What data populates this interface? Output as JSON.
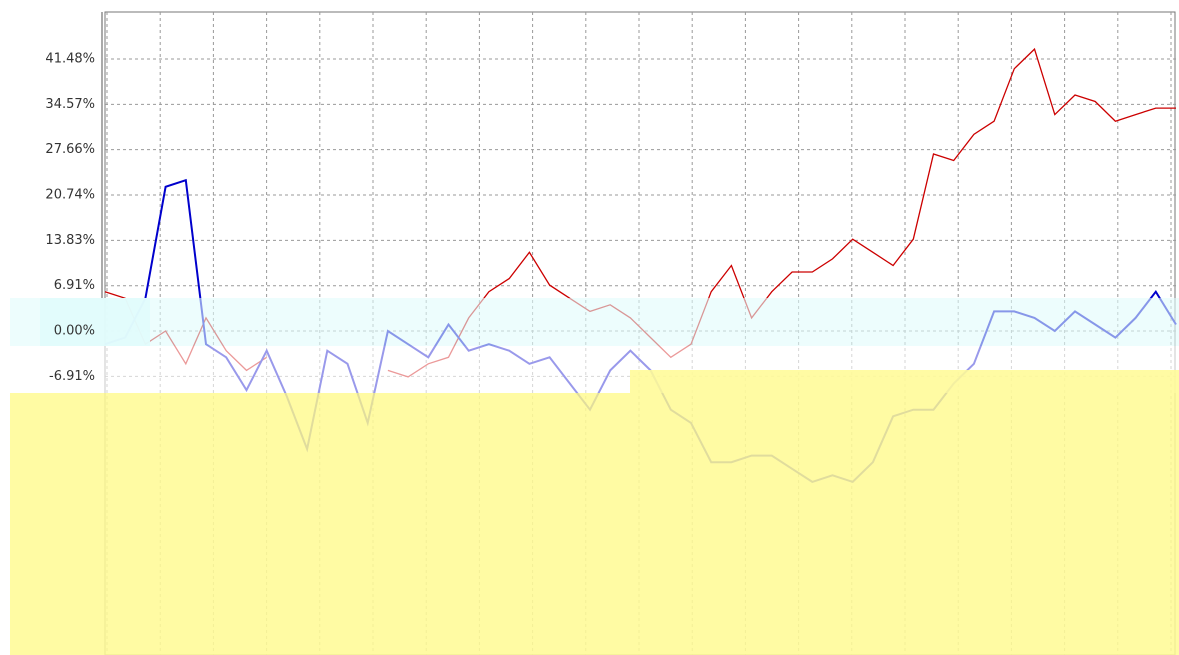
{
  "chart_data": {
    "type": "line",
    "series": [
      {
        "color": "#cc0000",
        "values": [
          6,
          5,
          -2,
          0,
          -5,
          2,
          -3,
          -6,
          -4,
          null,
          null,
          null,
          null,
          null,
          -6,
          -7,
          -5,
          -4,
          2,
          6,
          8,
          12,
          7,
          5,
          3,
          4,
          2,
          -1,
          -4,
          -2,
          6,
          10,
          2,
          6,
          9,
          9,
          11,
          14,
          12,
          10,
          14,
          27,
          26,
          30,
          32,
          40,
          43,
          33,
          36,
          35,
          32,
          33,
          34,
          34
        ]
      },
      {
        "color": "#0000cc",
        "values": [
          -2,
          -1,
          5,
          22,
          23,
          -2,
          -4,
          -9,
          -3,
          -10,
          -18,
          -3,
          -5,
          -14,
          0,
          -2,
          -4,
          1,
          -3,
          -2,
          -3,
          -5,
          -4,
          -8,
          -12,
          -6,
          -3,
          -6,
          -12,
          -14,
          -20,
          -20,
          -19,
          -19,
          -21,
          -23,
          -22,
          -23,
          -20,
          -13,
          -12,
          -12,
          -8,
          -5,
          3,
          3,
          2,
          0,
          3,
          1,
          -1,
          2,
          6,
          1
        ]
      }
    ],
    "ylim": [
      -49.4,
      48.65
    ],
    "yticks": [
      {
        "value": -6.91,
        "label": "-6.91%"
      },
      {
        "value": 0,
        "label": "0.00%"
      },
      {
        "value": 6.91,
        "label": "6.91%"
      },
      {
        "value": 13.83,
        "label": "13.83%"
      },
      {
        "value": 20.74,
        "label": "20.74%"
      },
      {
        "value": 27.66,
        "label": "27.66%"
      },
      {
        "value": 34.57,
        "label": "34.57%"
      },
      {
        "value": 41.48,
        "label": "41.48%"
      }
    ],
    "grid": true
  }
}
